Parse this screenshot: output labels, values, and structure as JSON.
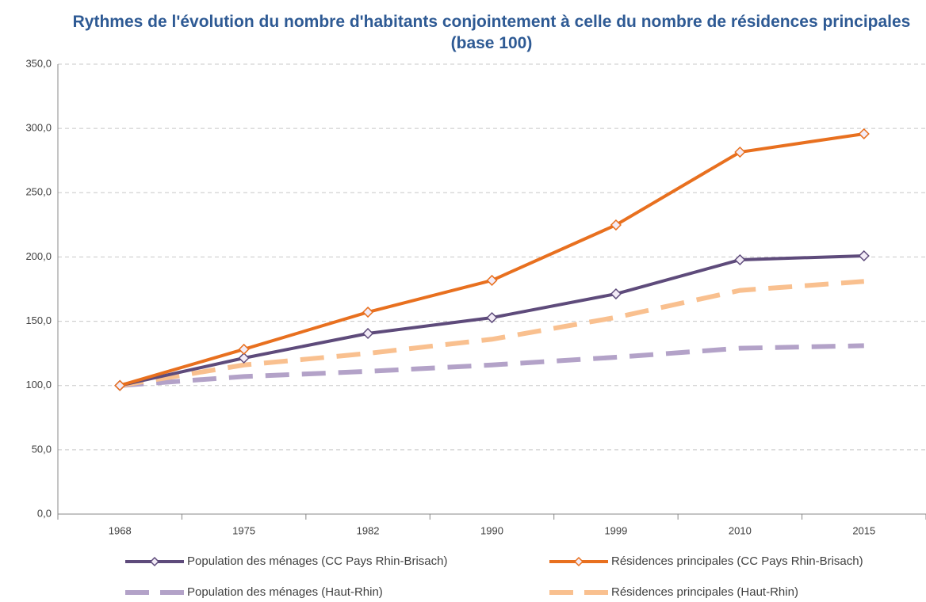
{
  "chart_data": {
    "type": "line",
    "title": "Rythmes de l'évolution du nombre d'habitants conjointement à celle du nombre de résidences principales (base 100)",
    "categories": [
      "1968",
      "1975",
      "1982",
      "1990",
      "1999",
      "2010",
      "2015"
    ],
    "series": [
      {
        "name": "Population des ménages (CC Pays Rhin-Brisach)",
        "color": "#5e4b7b",
        "dashed": false,
        "markers": true,
        "values": [
          100,
          121.4,
          140.5,
          152.8,
          171.3,
          197.8,
          200.9
        ]
      },
      {
        "name": "Résidences principales (CC Pays Rhin-Brisach)",
        "color": "#e8701f",
        "dashed": false,
        "markers": true,
        "values": [
          100,
          128.2,
          157.1,
          181.8,
          224.9,
          281.6,
          295.8
        ]
      },
      {
        "name": "Population des ménages (Haut-Rhin)",
        "color": "#b3a2c8",
        "dashed": true,
        "markers": false,
        "values": [
          100,
          107,
          111,
          116,
          122,
          129,
          131
        ]
      },
      {
        "name": "Résidences principales (Haut-Rhin)",
        "color": "#f9c08f",
        "dashed": true,
        "markers": false,
        "values": [
          100,
          116,
          125,
          136,
          153,
          174,
          181
        ]
      }
    ],
    "ylim": [
      0,
      350
    ],
    "yticks": [
      {
        "value": 0,
        "label": "0,0"
      },
      {
        "value": 50,
        "label": "50,0"
      },
      {
        "value": 100,
        "label": "100,0"
      },
      {
        "value": 150,
        "label": "150,0"
      },
      {
        "value": 200,
        "label": "200,0"
      },
      {
        "value": 250,
        "label": "250,0"
      },
      {
        "value": 300,
        "label": "300,0"
      },
      {
        "value": 350,
        "label": "350,0"
      }
    ],
    "grid": true,
    "legend": "bottom"
  }
}
